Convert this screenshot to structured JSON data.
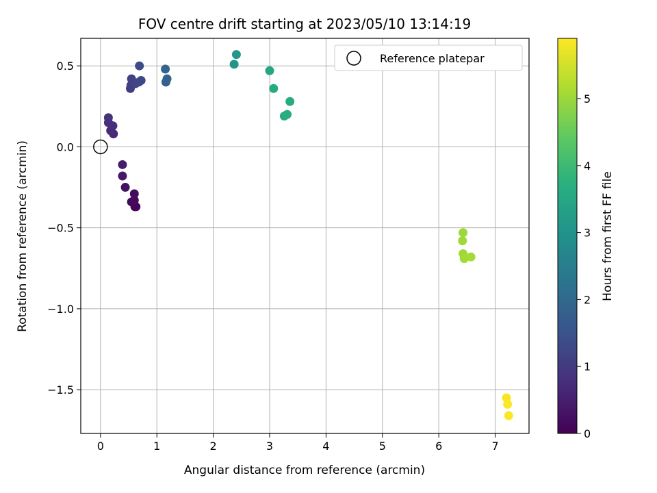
{
  "chart_data": {
    "type": "scatter",
    "title": "FOV centre drift starting at 2023/05/10 13:14:19",
    "xlabel": "Angular distance from reference (arcmin)",
    "ylabel": "Rotation from reference (arcmin)",
    "xlim": [
      -0.35,
      7.6
    ],
    "ylim": [
      -1.77,
      0.67
    ],
    "xticks": [
      0,
      1,
      2,
      3,
      4,
      5,
      6,
      7
    ],
    "xtick_labels": [
      "0",
      "1",
      "2",
      "3",
      "4",
      "5",
      "6",
      "7"
    ],
    "yticks": [
      0.5,
      0.0,
      -0.5,
      -1.0,
      -1.5
    ],
    "ytick_labels": [
      "0.5",
      "0.0",
      "−0.5",
      "−1.0",
      "−1.5"
    ],
    "grid": true,
    "legend": {
      "location": "top-right",
      "entries": [
        {
          "label": "Reference platepar",
          "marker": "open-circle",
          "color": "#000000"
        }
      ]
    },
    "reference_point": {
      "x": 0.0,
      "y": 0.0
    },
    "colorbar": {
      "label": "Hours from first FF file",
      "colormap": "viridis",
      "range": [
        0,
        5.9
      ],
      "ticks": [
        0,
        1,
        2,
        3,
        4,
        5
      ],
      "tick_labels": [
        "0",
        "1",
        "2",
        "3",
        "4",
        "5"
      ]
    },
    "series": [
      {
        "points": [
          {
            "x": 0.61,
            "y": -0.37,
            "hours": 0.05
          },
          {
            "x": 0.63,
            "y": -0.37,
            "hours": 0.08
          },
          {
            "x": 0.55,
            "y": -0.34,
            "hours": 0.12
          },
          {
            "x": 0.6,
            "y": -0.33,
            "hours": 0.15
          },
          {
            "x": 0.6,
            "y": -0.29,
            "hours": 0.18
          },
          {
            "x": 0.44,
            "y": -0.25,
            "hours": 0.3
          },
          {
            "x": 0.39,
            "y": -0.18,
            "hours": 0.38
          },
          {
            "x": 0.39,
            "y": -0.11,
            "hours": 0.45
          },
          {
            "x": 0.23,
            "y": 0.08,
            "hours": 0.65
          },
          {
            "x": 0.18,
            "y": 0.1,
            "hours": 0.7
          },
          {
            "x": 0.22,
            "y": 0.13,
            "hours": 0.73
          },
          {
            "x": 0.14,
            "y": 0.15,
            "hours": 0.8
          },
          {
            "x": 0.14,
            "y": 0.18,
            "hours": 0.85
          },
          {
            "x": 0.53,
            "y": 0.36,
            "hours": 1.05
          },
          {
            "x": 0.54,
            "y": 0.38,
            "hours": 1.1
          },
          {
            "x": 0.55,
            "y": 0.42,
            "hours": 1.13
          },
          {
            "x": 0.62,
            "y": 0.39,
            "hours": 1.2
          },
          {
            "x": 0.68,
            "y": 0.4,
            "hours": 1.25
          },
          {
            "x": 0.72,
            "y": 0.41,
            "hours": 1.28
          },
          {
            "x": 0.69,
            "y": 0.5,
            "hours": 1.35
          },
          {
            "x": 1.16,
            "y": 0.4,
            "hours": 1.8
          },
          {
            "x": 1.18,
            "y": 0.42,
            "hours": 1.85
          },
          {
            "x": 1.15,
            "y": 0.48,
            "hours": 1.9
          },
          {
            "x": 2.37,
            "y": 0.51,
            "hours": 3.05
          },
          {
            "x": 2.41,
            "y": 0.57,
            "hours": 3.1
          },
          {
            "x": 3.0,
            "y": 0.47,
            "hours": 3.5
          },
          {
            "x": 3.07,
            "y": 0.36,
            "hours": 3.55
          },
          {
            "x": 3.36,
            "y": 0.28,
            "hours": 3.6
          },
          {
            "x": 3.26,
            "y": 0.19,
            "hours": 3.62
          },
          {
            "x": 3.31,
            "y": 0.2,
            "hours": 3.64
          },
          {
            "x": 6.43,
            "y": -0.53,
            "hours": 5.0
          },
          {
            "x": 6.42,
            "y": -0.58,
            "hours": 5.02
          },
          {
            "x": 6.43,
            "y": -0.66,
            "hours": 5.05
          },
          {
            "x": 6.45,
            "y": -0.69,
            "hours": 5.07
          },
          {
            "x": 6.57,
            "y": -0.68,
            "hours": 5.1
          },
          {
            "x": 7.2,
            "y": -1.55,
            "hours": 5.85
          },
          {
            "x": 7.22,
            "y": -1.59,
            "hours": 5.87
          },
          {
            "x": 7.24,
            "y": -1.66,
            "hours": 5.89
          }
        ]
      }
    ]
  }
}
